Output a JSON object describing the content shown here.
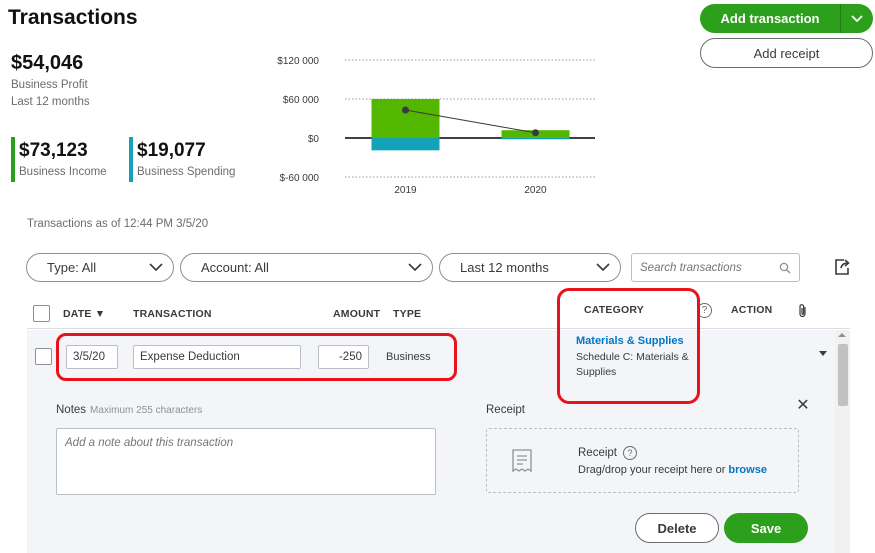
{
  "header": {
    "title": "Transactions",
    "add_transaction_label": "Add transaction",
    "add_receipt_label": "Add receipt"
  },
  "summary": {
    "profit_value": "$54,046",
    "profit_label": "Business Profit",
    "period_label": "Last 12 months",
    "income_value": "$73,123",
    "income_label": "Business Income",
    "spending_value": "$19,077",
    "spending_label": "Business Spending",
    "income_color": "#2ca01c",
    "spending_color": "#13a2b8"
  },
  "chart_data": {
    "type": "bar",
    "categories": [
      "2019",
      "2020"
    ],
    "y_tick_labels": [
      "$120 000",
      "$60 000",
      "$0",
      "$-60 000"
    ],
    "y_ticks": [
      120000,
      60000,
      0,
      -60000
    ],
    "ylim": [
      -60000,
      120000
    ],
    "series": [
      {
        "values": [
          60000,
          12000
        ],
        "color": "#53b700"
      },
      {
        "values": [
          -19000,
          -2000
        ],
        "color": "#13a2b8"
      }
    ],
    "profit_line": [
      43000,
      8000
    ],
    "grid": true
  },
  "filters": {
    "as_of": "Transactions as of 12:44 PM 3/5/20",
    "type": "Type: All",
    "account": "Account: All",
    "period": "Last 12 months",
    "search_placeholder": "Search transactions"
  },
  "table": {
    "headers": {
      "date": "DATE ▼",
      "transaction": "TRANSACTION",
      "amount": "AMOUNT",
      "type": "TYPE",
      "category": "CATEGORY",
      "action": "ACTION"
    },
    "row": {
      "date": "3/5/20",
      "description": "Expense Deduction",
      "amount": "-250",
      "type": "Business",
      "category": "Materials & Supplies",
      "category_sub": "Schedule C: Materials & Supplies"
    }
  },
  "details": {
    "notes_label": "Notes",
    "notes_hint": "Maximum 255 characters",
    "notes_placeholder": "Add a note about this transaction",
    "receipt_label": "Receipt",
    "dropzone_title": "Receipt",
    "dropzone_text": "Drag/drop your receipt here or",
    "dropzone_browse": "browse",
    "delete_label": "Delete",
    "save_label": "Save"
  }
}
